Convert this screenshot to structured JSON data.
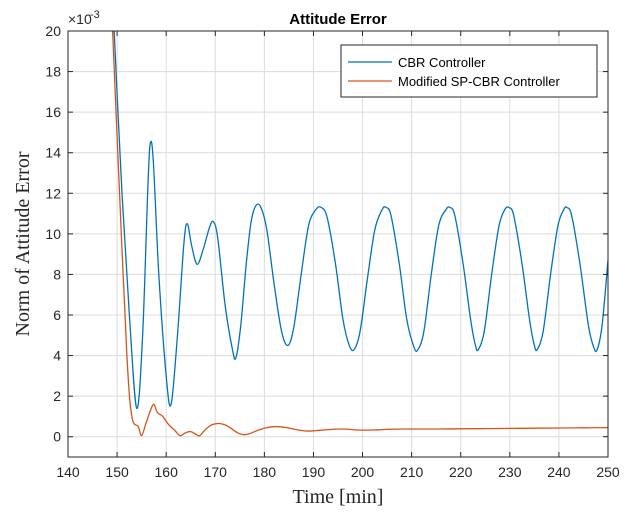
{
  "chart_data": {
    "type": "line",
    "title": "Attitude Error",
    "xlabel": "Time [min]",
    "ylabel": "Norm of Attitude Error",
    "y_exponent_label": "×10",
    "y_exponent_value": "-3",
    "xlim": [
      140,
      250
    ],
    "ylim": [
      -1,
      20
    ],
    "x_ticks": [
      140,
      150,
      160,
      170,
      180,
      190,
      200,
      210,
      220,
      230,
      240,
      250
    ],
    "y_ticks": [
      0,
      2,
      4,
      6,
      8,
      10,
      12,
      14,
      16,
      18,
      20
    ],
    "grid": true,
    "legend_position": "top-right",
    "series": [
      {
        "name": "CBR Controller",
        "color": "#0072BD",
        "points": [
          [
            149.3,
            20.5
          ],
          [
            151,
            12
          ],
          [
            152.5,
            6
          ],
          [
            154,
            1.4
          ],
          [
            155.2,
            5
          ],
          [
            156.3,
            12.5
          ],
          [
            156.8,
            14.5
          ],
          [
            157.4,
            13.5
          ],
          [
            158.5,
            8
          ],
          [
            160,
            3
          ],
          [
            161,
            1.6
          ],
          [
            162.3,
            5
          ],
          [
            163.6,
            9.5
          ],
          [
            164.3,
            10.5
          ],
          [
            165.2,
            9.4
          ],
          [
            166.3,
            8.5
          ],
          [
            167.5,
            9.2
          ],
          [
            168.8,
            10.3
          ],
          [
            169.6,
            10.6
          ],
          [
            170.5,
            9.8
          ],
          [
            172,
            6.5
          ],
          [
            173.5,
            4.3
          ],
          [
            174.2,
            3.9
          ],
          [
            175.2,
            5.5
          ],
          [
            176.3,
            8.5
          ],
          [
            177.3,
            10.6
          ],
          [
            178.3,
            11.4
          ],
          [
            179.3,
            11.3
          ],
          [
            180.5,
            10.2
          ],
          [
            182,
            7.5
          ],
          [
            183.5,
            5.2
          ],
          [
            184.8,
            4.5
          ],
          [
            186,
            5.4
          ],
          [
            187.5,
            8
          ],
          [
            189,
            10.4
          ],
          [
            190.5,
            11.2
          ],
          [
            191.6,
            11.3
          ],
          [
            192.8,
            10.8
          ],
          [
            194.5,
            8.5
          ],
          [
            196,
            5.8
          ],
          [
            197.3,
            4.5
          ],
          [
            198.3,
            4.3
          ],
          [
            199.5,
            5.2
          ],
          [
            201,
            7.8
          ],
          [
            202.5,
            10.2
          ],
          [
            204,
            11.2
          ],
          [
            204.8,
            11.3
          ],
          [
            205.8,
            10.9
          ],
          [
            207.5,
            8.5
          ],
          [
            209,
            5.8
          ],
          [
            210.5,
            4.4
          ],
          [
            211.3,
            4.3
          ],
          [
            212.5,
            5.2
          ],
          [
            214,
            8
          ],
          [
            215.5,
            10.4
          ],
          [
            217,
            11.2
          ],
          [
            217.8,
            11.3
          ],
          [
            218.8,
            10.9
          ],
          [
            220.5,
            8.5
          ],
          [
            222,
            5.8
          ],
          [
            223,
            4.5
          ],
          [
            223.6,
            4.3
          ],
          [
            224.8,
            5.2
          ],
          [
            226.3,
            8
          ],
          [
            227.8,
            10.4
          ],
          [
            229,
            11.2
          ],
          [
            229.8,
            11.3
          ],
          [
            230.8,
            10.9
          ],
          [
            232.5,
            8.5
          ],
          [
            234,
            5.8
          ],
          [
            235,
            4.5
          ],
          [
            235.6,
            4.3
          ],
          [
            236.8,
            5.2
          ],
          [
            238.3,
            8
          ],
          [
            239.8,
            10.4
          ],
          [
            241,
            11.2
          ],
          [
            241.6,
            11.3
          ],
          [
            242.6,
            10.9
          ],
          [
            244.3,
            8.5
          ],
          [
            246,
            5.5
          ],
          [
            247.1,
            4.4
          ],
          [
            247.8,
            4.3
          ],
          [
            248.8,
            5.5
          ],
          [
            250,
            8.7
          ]
        ]
      },
      {
        "name": "Modified SP-CBR Controller",
        "color": "#D95319",
        "points": [
          [
            149.0,
            20.5
          ],
          [
            150.5,
            12
          ],
          [
            152,
            4
          ],
          [
            153,
            1.0
          ],
          [
            154.3,
            0.5
          ],
          [
            155,
            0.05
          ],
          [
            155.8,
            0.6
          ],
          [
            156.8,
            1.3
          ],
          [
            157.5,
            1.6
          ],
          [
            158.2,
            1.2
          ],
          [
            159.3,
            1.0
          ],
          [
            160.5,
            0.6
          ],
          [
            161.8,
            0.3
          ],
          [
            162.5,
            0.1
          ],
          [
            163,
            0.05
          ],
          [
            164,
            0.2
          ],
          [
            165,
            0.25
          ],
          [
            166.2,
            0.1
          ],
          [
            166.8,
            0.05
          ],
          [
            167.8,
            0.3
          ],
          [
            169,
            0.55
          ],
          [
            170.5,
            0.65
          ],
          [
            171.8,
            0.6
          ],
          [
            173,
            0.45
          ],
          [
            174.5,
            0.2
          ],
          [
            175.8,
            0.1
          ],
          [
            177,
            0.15
          ],
          [
            178.5,
            0.3
          ],
          [
            180.5,
            0.45
          ],
          [
            182.5,
            0.5
          ],
          [
            184.5,
            0.45
          ],
          [
            186.5,
            0.35
          ],
          [
            188.5,
            0.28
          ],
          [
            190.5,
            0.3
          ],
          [
            193,
            0.35
          ],
          [
            196,
            0.38
          ],
          [
            199,
            0.33
          ],
          [
            202,
            0.33
          ],
          [
            205,
            0.36
          ],
          [
            208,
            0.38
          ],
          [
            212,
            0.38
          ],
          [
            216,
            0.38
          ],
          [
            220,
            0.39
          ],
          [
            225,
            0.4
          ],
          [
            230,
            0.41
          ],
          [
            235,
            0.42
          ],
          [
            240,
            0.43
          ],
          [
            245,
            0.44
          ],
          [
            250,
            0.45
          ]
        ]
      }
    ]
  }
}
